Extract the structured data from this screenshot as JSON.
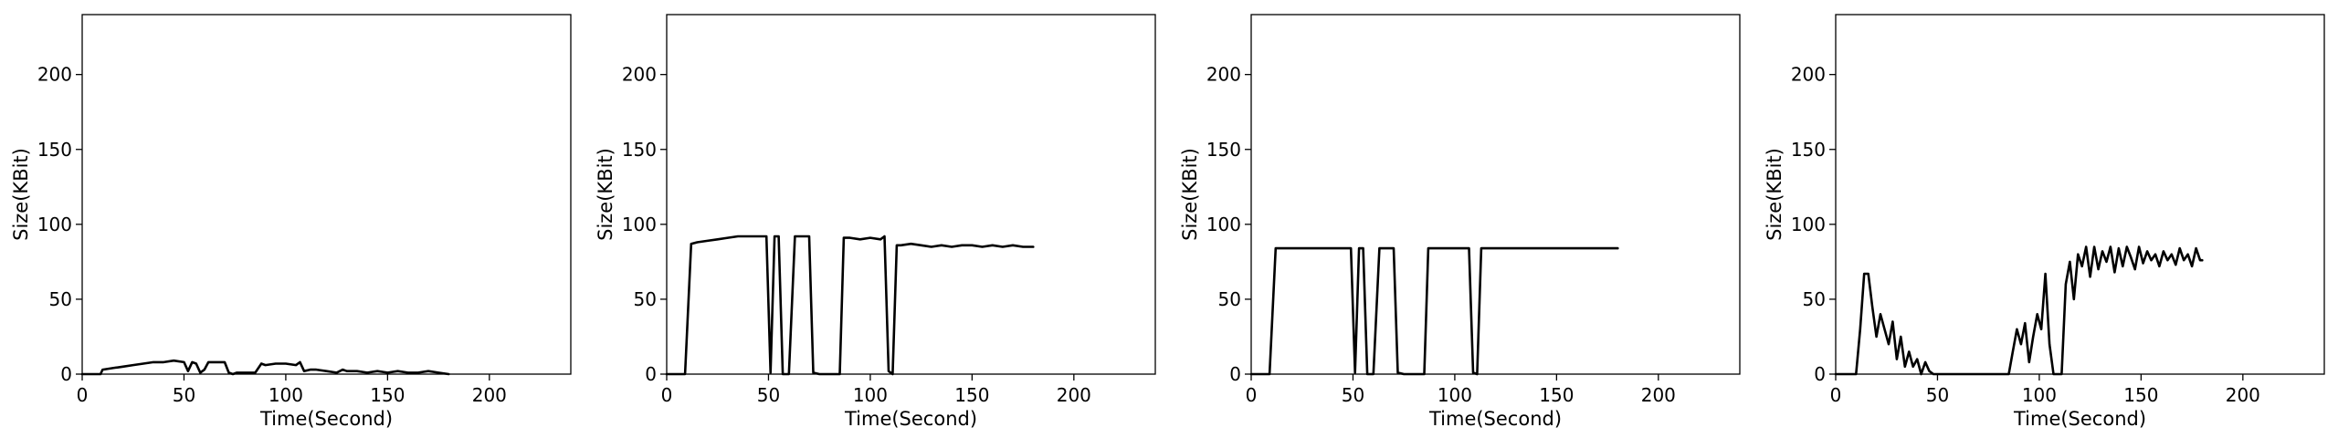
{
  "chart_data": [
    {
      "type": "line",
      "title": "",
      "xlabel": "Time(Second)",
      "ylabel": "Size(KBit)",
      "xlim": [
        0,
        240
      ],
      "ylim": [
        0,
        240
      ],
      "xticks": [
        0,
        50,
        100,
        150,
        200
      ],
      "yticks": [
        0,
        50,
        100,
        150,
        200
      ],
      "grid": false,
      "series": [
        {
          "color": "#000000",
          "x": [
            0,
            5,
            9,
            10,
            15,
            20,
            25,
            30,
            35,
            40,
            45,
            50,
            52,
            54,
            56,
            58,
            60,
            62,
            65,
            70,
            72,
            74,
            76,
            80,
            85,
            88,
            90,
            95,
            100,
            105,
            107,
            109,
            112,
            115,
            120,
            125,
            128,
            130,
            135,
            140,
            145,
            150,
            155,
            160,
            165,
            170,
            175,
            180
          ],
          "values": [
            0,
            0,
            0,
            3,
            4,
            5,
            6,
            7,
            8,
            8,
            9,
            8,
            2,
            8,
            7,
            1,
            3,
            8,
            8,
            8,
            1,
            0,
            1,
            1,
            1,
            7,
            6,
            7,
            7,
            6,
            8,
            2,
            3,
            3,
            2,
            1,
            3,
            2,
            2,
            1,
            2,
            1,
            2,
            1,
            1,
            2,
            1,
            0
          ]
        }
      ]
    },
    {
      "type": "line",
      "title": "",
      "xlabel": "Time(Second)",
      "ylabel": "Size(KBit)",
      "xlim": [
        0,
        240
      ],
      "ylim": [
        0,
        240
      ],
      "xticks": [
        0,
        50,
        100,
        150,
        200
      ],
      "yticks": [
        0,
        50,
        100,
        150,
        200
      ],
      "grid": false,
      "series": [
        {
          "color": "#000000",
          "x": [
            0,
            5,
            9,
            12,
            15,
            20,
            25,
            30,
            35,
            40,
            45,
            49,
            51,
            53,
            55,
            57,
            60,
            63,
            65,
            67,
            70,
            72,
            75,
            80,
            85,
            87,
            90,
            95,
            100,
            105,
            107,
            109,
            111,
            113,
            115,
            120,
            125,
            130,
            135,
            140,
            145,
            150,
            155,
            160,
            165,
            170,
            175,
            180
          ],
          "values": [
            0,
            0,
            0,
            87,
            88,
            89,
            90,
            91,
            92,
            92,
            92,
            92,
            1,
            92,
            92,
            0,
            0,
            92,
            92,
            92,
            92,
            1,
            0,
            0,
            0,
            91,
            91,
            90,
            91,
            90,
            92,
            2,
            0,
            86,
            86,
            87,
            86,
            85,
            86,
            85,
            86,
            86,
            85,
            86,
            85,
            86,
            85,
            85
          ]
        }
      ]
    },
    {
      "type": "line",
      "title": "",
      "xlabel": "Time(Second)",
      "ylabel": "Size(KBit)",
      "xlim": [
        0,
        240
      ],
      "ylim": [
        0,
        240
      ],
      "xticks": [
        0,
        50,
        100,
        150,
        200
      ],
      "yticks": [
        0,
        50,
        100,
        150,
        200
      ],
      "grid": false,
      "series": [
        {
          "color": "#000000",
          "x": [
            0,
            5,
            9,
            12,
            15,
            20,
            25,
            30,
            35,
            40,
            45,
            49,
            51,
            53,
            55,
            57,
            60,
            63,
            65,
            67,
            70,
            72,
            75,
            80,
            85,
            87,
            90,
            95,
            100,
            105,
            107,
            109,
            111,
            113,
            115,
            120,
            125,
            130,
            135,
            140,
            145,
            150,
            155,
            160,
            165,
            170,
            175,
            180
          ],
          "values": [
            0,
            0,
            0,
            84,
            84,
            84,
            84,
            84,
            84,
            84,
            84,
            84,
            1,
            84,
            84,
            0,
            0,
            84,
            84,
            84,
            84,
            1,
            0,
            0,
            0,
            84,
            84,
            84,
            84,
            84,
            84,
            1,
            0,
            84,
            84,
            84,
            84,
            84,
            84,
            84,
            84,
            84,
            84,
            84,
            84,
            84,
            84,
            84
          ]
        }
      ]
    },
    {
      "type": "line",
      "title": "",
      "xlabel": "Time(Second)",
      "ylabel": "Size(KBit)",
      "xlim": [
        0,
        240
      ],
      "ylim": [
        0,
        240
      ],
      "xticks": [
        0,
        50,
        100,
        150,
        200
      ],
      "yticks": [
        0,
        50,
        100,
        150,
        200
      ],
      "grid": false,
      "series": [
        {
          "color": "#000000",
          "x": [
            0,
            5,
            10,
            12,
            14,
            16,
            18,
            20,
            22,
            24,
            26,
            28,
            30,
            32,
            34,
            36,
            38,
            40,
            42,
            44,
            46,
            48,
            50,
            55,
            60,
            65,
            70,
            75,
            80,
            85,
            87,
            89,
            91,
            93,
            95,
            97,
            99,
            101,
            103,
            105,
            107,
            109,
            111,
            113,
            115,
            117,
            119,
            121,
            123,
            125,
            127,
            129,
            131,
            133,
            135,
            137,
            139,
            141,
            143,
            145,
            147,
            149,
            151,
            153,
            155,
            157,
            159,
            161,
            163,
            165,
            167,
            169,
            171,
            173,
            175,
            177,
            179,
            180
          ],
          "values": [
            0,
            0,
            0,
            30,
            67,
            67,
            45,
            25,
            40,
            30,
            20,
            35,
            10,
            25,
            5,
            15,
            5,
            10,
            0,
            8,
            2,
            0,
            0,
            0,
            0,
            0,
            0,
            0,
            0,
            0,
            15,
            30,
            20,
            34,
            8,
            25,
            40,
            30,
            67,
            20,
            0,
            0,
            0,
            60,
            75,
            50,
            80,
            72,
            85,
            65,
            85,
            70,
            82,
            75,
            85,
            68,
            84,
            72,
            85,
            78,
            70,
            85,
            74,
            82,
            76,
            80,
            72,
            82,
            76,
            80,
            73,
            84,
            76,
            80,
            72,
            84,
            76,
            76
          ]
        }
      ]
    }
  ]
}
